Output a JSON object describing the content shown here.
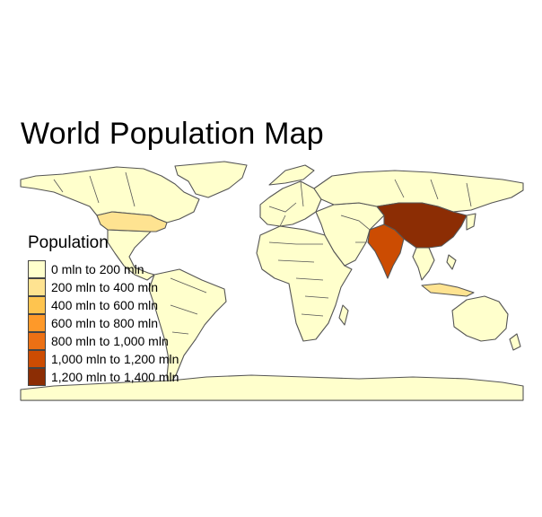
{
  "title": "World Population Map",
  "legend": {
    "title": "Population",
    "items": [
      {
        "label": "0 mln to 200 mln",
        "color": "#FFFFCC"
      },
      {
        "label": "200 mln to 400 mln",
        "color": "#FEE391"
      },
      {
        "label": "400 mln to 600 mln",
        "color": "#FEC44F"
      },
      {
        "label": "600 mln to 800 mln",
        "color": "#FE9929"
      },
      {
        "label": "800 mln to 1,000 mln",
        "color": "#EC7014"
      },
      {
        "label": "1,000 mln to 1,200 mln",
        "color": "#CC4C02"
      },
      {
        "label": "1,200 mln to 1,400 mln",
        "color": "#8C2D04"
      }
    ]
  },
  "regions": [
    {
      "name": "North America",
      "bin": 0
    },
    {
      "name": "United States",
      "bin": 1
    },
    {
      "name": "South America",
      "bin": 0
    },
    {
      "name": "Europe",
      "bin": 0
    },
    {
      "name": "Africa",
      "bin": 0
    },
    {
      "name": "Middle East and Central Asia",
      "bin": 0
    },
    {
      "name": "Russia",
      "bin": 0
    },
    {
      "name": "India",
      "bin": 5
    },
    {
      "name": "China",
      "bin": 6
    },
    {
      "name": "Southeast Asia",
      "bin": 0
    },
    {
      "name": "Indonesia",
      "bin": 1
    },
    {
      "name": "Australia",
      "bin": 0
    },
    {
      "name": "Antarctica",
      "bin": 0
    },
    {
      "name": "Greenland",
      "bin": 0
    }
  ],
  "colors": {
    "border": "#555555",
    "frame": "#555555"
  }
}
